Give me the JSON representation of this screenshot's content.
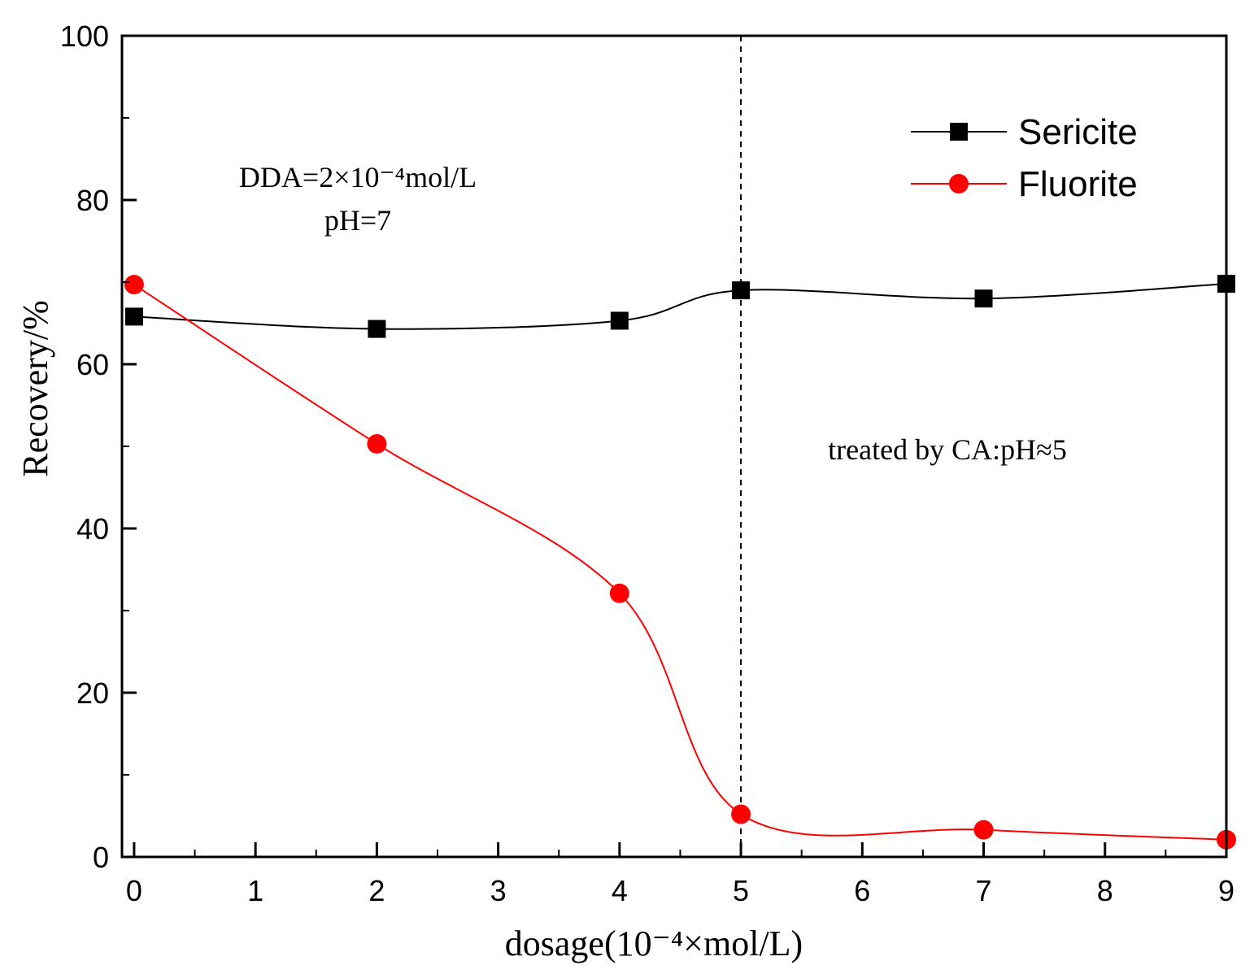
{
  "chart_data": {
    "type": "line",
    "xlabel": "dosage(10⁻⁴×mol/L)",
    "ylabel": "Recovery/%",
    "xlim": [
      -0.1,
      9
    ],
    "ylim": [
      0,
      100
    ],
    "xticks": [
      0,
      1,
      2,
      3,
      4,
      5,
      6,
      7,
      8,
      9
    ],
    "yticks": [
      0,
      20,
      40,
      60,
      80,
      100
    ],
    "grid": false,
    "legend_position": "top-right",
    "series": [
      {
        "name": "Sericite",
        "color": "#000000",
        "marker": "square",
        "x": [
          0,
          2,
          4,
          5,
          7,
          9
        ],
        "y": [
          65.8,
          64.3,
          65.3,
          69.0,
          68.0,
          69.8
        ]
      },
      {
        "name": "Fluorite",
        "color": "#ff0000",
        "marker": "circle",
        "x": [
          0,
          2,
          4,
          5,
          7,
          9
        ],
        "y": [
          69.7,
          50.3,
          32.1,
          5.2,
          3.3,
          2.1
        ]
      }
    ],
    "reference_line": {
      "x": 5,
      "style": "dashed"
    },
    "annotations": {
      "condition_line1": "DDA=2×10⁻⁴mol/L",
      "condition_line2": "pH=7",
      "treatment_note": "treated by CA:pH≈5"
    }
  }
}
